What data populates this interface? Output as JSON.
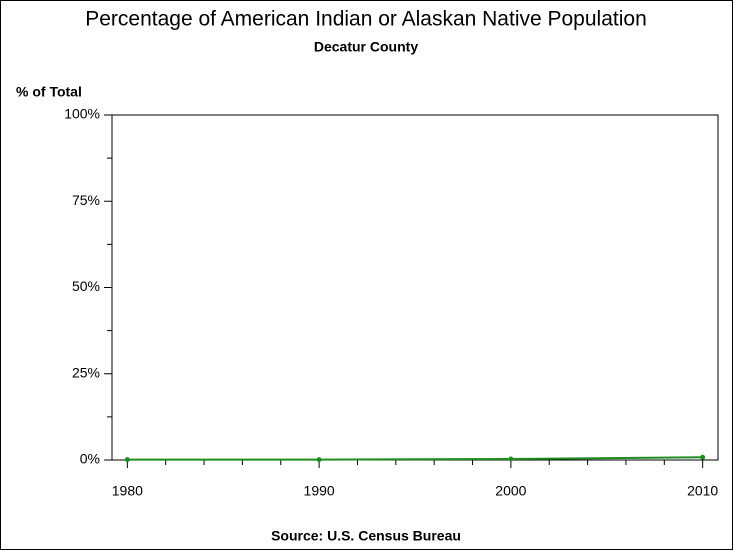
{
  "chart_data": {
    "type": "line",
    "title": "Percentage of American Indian or Alaskan Native Population",
    "subtitle": "Decatur County",
    "y_label": "% of Total",
    "source": "Source: U.S. Census Bureau",
    "x": [
      1980,
      1990,
      2000,
      2010
    ],
    "series": [
      {
        "name": "Decatur County",
        "color": "#1e8c1e",
        "values": [
          0.1,
          0.1,
          0.3,
          0.8
        ]
      }
    ],
    "xlim": [
      1979.2,
      2010.8
    ],
    "xticks": [
      1980,
      1990,
      2000,
      2010
    ],
    "x_minor_ticks": [
      1982,
      1984,
      1986,
      1988,
      1992,
      1994,
      1996,
      1998,
      2002,
      2004,
      2006,
      2008
    ],
    "ylim": [
      0,
      100
    ],
    "yticks": [
      {
        "value": 0,
        "label": "0%"
      },
      {
        "value": 25,
        "label": "25%"
      },
      {
        "value": 50,
        "label": "50%"
      },
      {
        "value": 75,
        "label": "75%"
      },
      {
        "value": 100,
        "label": "100%"
      }
    ],
    "y_minor_ticks": [
      12.5,
      37.5,
      62.5,
      87.5
    ],
    "grid": false
  }
}
